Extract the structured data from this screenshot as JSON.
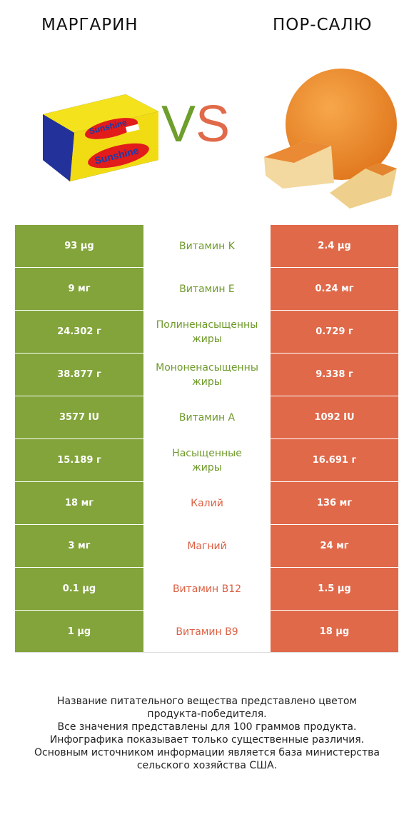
{
  "header": {
    "left_title": "МАРГАРИН",
    "right_title": "ПОР-САЛЮ",
    "vs_v": "V",
    "vs_s": "S"
  },
  "colors": {
    "left_accent": "#82a43a",
    "right_accent": "#e0694a"
  },
  "rows": [
    {
      "left": "93 µg",
      "nutrient": "Витамин K",
      "right": "2.4 µg",
      "winner": "left"
    },
    {
      "left": "9 мг",
      "nutrient": "Витамин E",
      "right": "0.24 мг",
      "winner": "left"
    },
    {
      "left": "24.302 г",
      "nutrient": "Полиненасыщенные жиры",
      "nutrient_l1": "Полиненасыщенны",
      "nutrient_l2": "жиры",
      "right": "0.729 г",
      "winner": "left"
    },
    {
      "left": "38.877 г",
      "nutrient": "Мононенасыщенные жиры",
      "nutrient_l1": "Мононенасыщенны",
      "nutrient_l2": "жиры",
      "right": "9.338 г",
      "winner": "left"
    },
    {
      "left": "3577 IU",
      "nutrient": "Витамин A",
      "right": "1092 IU",
      "winner": "left"
    },
    {
      "left": "15.189 г",
      "nutrient": "Насыщенные жиры",
      "nutrient_l1": "Насыщенные",
      "nutrient_l2": "жиры",
      "right": "16.691 г",
      "winner": "left"
    },
    {
      "left": "18 мг",
      "nutrient": "Калий",
      "right": "136 мг",
      "winner": "right"
    },
    {
      "left": "3 мг",
      "nutrient": "Магний",
      "right": "24 мг",
      "winner": "right"
    },
    {
      "left": "0.1 µg",
      "nutrient": "Витамин B12",
      "right": "1.5 µg",
      "winner": "right"
    },
    {
      "left": "1 µg",
      "nutrient": "Витамин B9",
      "right": "18 µg",
      "winner": "right"
    }
  ],
  "footer": {
    "line1": "Название питательного вещества представлено цветом",
    "line2": "продукта-победителя.",
    "line3": "Все значения представлены для 100 граммов продукта.",
    "line4": "Инфографика показывает только существенные различия.",
    "line5": "Основным источником информации является база министерства",
    "line6": "сельского хозяйства США."
  }
}
